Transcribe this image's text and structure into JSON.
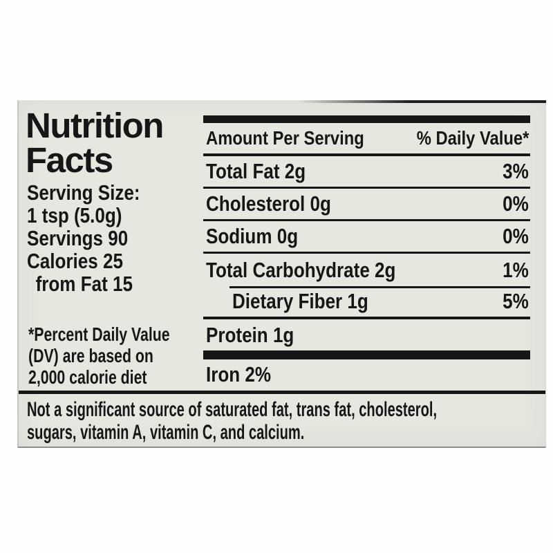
{
  "label": {
    "colors": {
      "background": "#e6e8e0",
      "ink": "#161616"
    },
    "title_lines": [
      "Nutrition",
      "Facts"
    ],
    "serving_info": {
      "serving_size_label": "Serving Size:",
      "serving_size_value": "1 tsp (5.0g)",
      "servings": "Servings 90",
      "calories": "Calories 25",
      "calories_from_fat": "from Fat 15"
    },
    "footnote_lines": [
      "*Percent Daily Value",
      "(DV) are based on",
      "2,000 calorie diet"
    ],
    "table": {
      "header": {
        "amount_col": "Amount Per Serving",
        "dv_col": "% Daily Value*"
      },
      "rows": [
        {
          "name": "Total Fat",
          "amount": "2g",
          "dv": "3%",
          "indent": false
        },
        {
          "name": "Cholesterol",
          "amount": "0g",
          "dv": "0%",
          "indent": false
        },
        {
          "name": "Sodium",
          "amount": "0g",
          "dv": "0%",
          "indent": false
        },
        {
          "name": "Total Carbohydrate",
          "amount": "2g",
          "dv": "1%",
          "indent": false
        },
        {
          "name": "Dietary Fiber",
          "amount": "1g",
          "dv": "5%",
          "indent": true
        },
        {
          "name": "Protein",
          "amount": "1g",
          "dv": "",
          "indent": false
        },
        {
          "name": "Iron",
          "amount": "2%",
          "dv": "",
          "indent": false
        }
      ]
    },
    "disclaimer_lines": [
      "Not a significant source of saturated fat, trans fat, cholesterol,",
      "sugars, vitamin A, vitamin C, and calcium."
    ],
    "disclaimer": "Not a significant source of saturated fat, trans fat, cholesterol, sugars, vitamin A, vitamin C, and calcium."
  }
}
